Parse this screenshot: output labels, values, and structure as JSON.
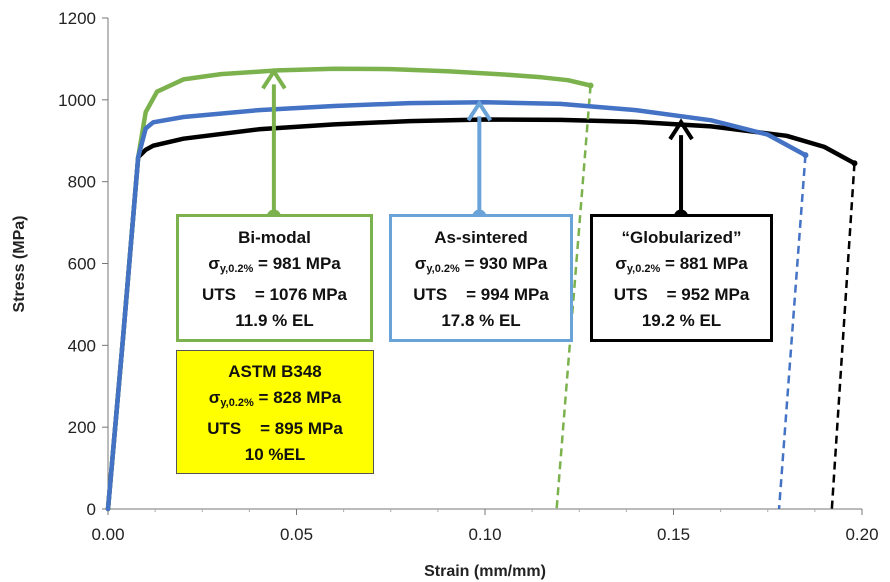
{
  "chart_data": {
    "type": "line",
    "xlabel": "Strain (mm/mm)",
    "ylabel": "Stress (MPa)",
    "xlim": [
      0,
      0.2
    ],
    "ylim": [
      0,
      1200
    ],
    "xticks": [
      "0.00",
      "0.05",
      "0.10",
      "0.15",
      "0.20"
    ],
    "yticks": [
      "0",
      "200",
      "400",
      "600",
      "800",
      "1000",
      "1200"
    ],
    "grid": false,
    "colors": {
      "bimodal": "#7cb24d",
      "as_sintered": "#4472c4",
      "globularized": "#000000"
    },
    "series": [
      {
        "color": "#7cb24d",
        "x": [
          0,
          0.004,
          0.008,
          0.01,
          0.013,
          0.02,
          0.03,
          0.045,
          0.06,
          0.075,
          0.09,
          0.105,
          0.115,
          0.122,
          0.128
        ],
        "y": [
          0,
          420,
          860,
          970,
          1020,
          1050,
          1063,
          1072,
          1076,
          1075,
          1070,
          1062,
          1055,
          1048,
          1035
        ],
        "unload_x": [
          0.128,
          0.119
        ],
        "unload_y": [
          1035,
          0
        ]
      },
      {
        "color": "#4472c4",
        "x": [
          0,
          0.004,
          0.008,
          0.01,
          0.012,
          0.02,
          0.04,
          0.06,
          0.08,
          0.1,
          0.12,
          0.14,
          0.16,
          0.175,
          0.185
        ],
        "y": [
          0,
          420,
          860,
          930,
          945,
          958,
          975,
          985,
          992,
          994,
          990,
          975,
          950,
          915,
          865
        ],
        "unload_x": [
          0.185,
          0.178
        ],
        "unload_y": [
          865,
          0
        ]
      },
      {
        "color": "#000000",
        "x": [
          0,
          0.004,
          0.008,
          0.01,
          0.012,
          0.02,
          0.04,
          0.06,
          0.08,
          0.1,
          0.12,
          0.14,
          0.16,
          0.18,
          0.19,
          0.198
        ],
        "y": [
          0,
          420,
          860,
          878,
          888,
          905,
          928,
          940,
          948,
          952,
          951,
          946,
          935,
          912,
          885,
          845
        ],
        "unload_x": [
          0.198,
          0.192
        ],
        "unload_y": [
          845,
          0
        ]
      }
    ],
    "arrows": [
      {
        "color": "#7cb24d",
        "x": 0.044,
        "y_from": 715,
        "y_to": 1072
      },
      {
        "color": "#6aa3d8",
        "x": 0.0985,
        "y_from": 715,
        "y_to": 994
      },
      {
        "color": "#000000",
        "x": 0.152,
        "y_from": 715,
        "y_to": 948
      }
    ]
  },
  "annotations": {
    "bimodal": {
      "title": "Bi-modal",
      "sigma": "σ",
      "sigma_sub": "y,0.2%",
      "yield": "= 981 MPa",
      "uts": "UTS    = 1076 MPa",
      "el": "11.9 % EL"
    },
    "as_sintered": {
      "title": "As-sintered",
      "sigma": "σ",
      "sigma_sub": "y,0.2%",
      "yield": "= 930 MPa",
      "uts": "UTS    = 994 MPa",
      "el": "17.8 % EL"
    },
    "globularized": {
      "title": "“Globularized”",
      "sigma": "σ",
      "sigma_sub": "y,0.2%",
      "yield": "= 881 MPa",
      "uts": "UTS    = 952 MPa",
      "el": "19.2 % EL"
    },
    "astm": {
      "title": "ASTM B348",
      "sigma": "σ",
      "sigma_sub": "y,0.2%",
      "yield": "= 828 MPa",
      "uts": "UTS    = 895 MPa",
      "el": "10 %EL"
    }
  }
}
